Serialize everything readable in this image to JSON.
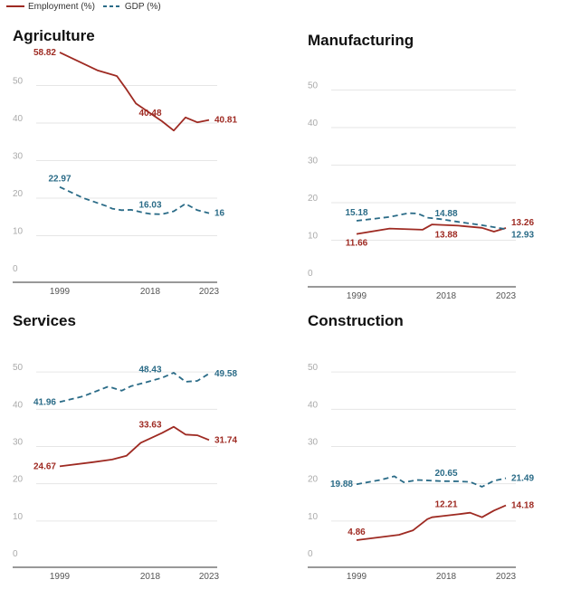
{
  "legend": {
    "employment": "Employment (%)",
    "gdp": "GDP (%)"
  },
  "colors": {
    "employment": "#9e2a22",
    "gdp": "#2a6b87"
  },
  "chart_data": [
    {
      "type": "line",
      "title": "Agriculture",
      "ylim": [
        0,
        60
      ],
      "yticks": [
        0,
        10,
        20,
        30,
        40,
        50
      ],
      "x_ticks": [
        "1999",
        "2018",
        "2023"
      ],
      "grid": true,
      "series": [
        {
          "name": "Employment (%)",
          "style": "solid",
          "x": [
            1999,
            2007,
            2011,
            2013,
            2015,
            2019,
            2020,
            2021,
            2022,
            2023
          ],
          "values": [
            58.82,
            54,
            52.5,
            49,
            45.2,
            40.48,
            38,
            41.5,
            40.2,
            40.81
          ],
          "labels": [
            {
              "x": 1999,
              "y": 58.82,
              "text": "58.82",
              "pos": "left"
            },
            {
              "x": 2018,
              "y": 40.48,
              "text": "40.48",
              "pos": "above"
            },
            {
              "x": 2023,
              "y": 40.81,
              "text": "40.81",
              "pos": "right"
            }
          ]
        },
        {
          "name": "GDP (%)",
          "style": "dashed",
          "x": [
            1999,
            2004,
            2009,
            2010,
            2012,
            2014,
            2017,
            2018,
            2019,
            2020,
            2021,
            2022,
            2023
          ],
          "values": [
            22.97,
            20,
            17.8,
            17.2,
            16.8,
            16.9,
            16.03,
            15.8,
            15.7,
            16.5,
            18.5,
            16.8,
            16
          ],
          "labels": [
            {
              "x": 1999,
              "y": 22.97,
              "text": "22.97",
              "pos": "above"
            },
            {
              "x": 2018,
              "y": 16.03,
              "text": "16.03",
              "pos": "above"
            },
            {
              "x": 2023,
              "y": 16,
              "text": "16",
              "pos": "right"
            }
          ]
        }
      ]
    },
    {
      "type": "line",
      "title": "Manufacturing",
      "ylim": [
        0,
        60
      ],
      "yticks": [
        0,
        10,
        20,
        30,
        40,
        50
      ],
      "x_ticks": [
        "1999",
        "2018",
        "2023"
      ],
      "grid": true,
      "series": [
        {
          "name": "Employment (%)",
          "style": "solid",
          "x": [
            1999,
            2006,
            2013,
            2015,
            2019,
            2021,
            2022,
            2023
          ],
          "values": [
            11.66,
            13.1,
            12.8,
            14.2,
            13.88,
            13.3,
            12.3,
            13.26
          ],
          "labels": [
            {
              "x": 1999,
              "y": 11.66,
              "text": "11.66",
              "pos": "below"
            },
            {
              "x": 2018,
              "y": 13.88,
              "text": "13.88",
              "pos": "below"
            },
            {
              "x": 2023,
              "y": 13.26,
              "text": "13.26",
              "pos": "rightup"
            }
          ]
        },
        {
          "name": "GDP (%)",
          "style": "dashed",
          "x": [
            1999,
            2006,
            2010,
            2012,
            2014,
            2017,
            2019,
            2021,
            2023
          ],
          "values": [
            15.18,
            16.2,
            17.2,
            17.1,
            16,
            15.6,
            14.88,
            14,
            12.93
          ],
          "labels": [
            {
              "x": 1999,
              "y": 15.18,
              "text": "15.18",
              "pos": "above"
            },
            {
              "x": 2018,
              "y": 14.88,
              "text": "14.88",
              "pos": "above"
            },
            {
              "x": 2023,
              "y": 12.93,
              "text": "12.93",
              "pos": "rightdown"
            }
          ]
        }
      ]
    },
    {
      "type": "line",
      "title": "Services",
      "ylim": [
        0,
        60
      ],
      "yticks": [
        0,
        10,
        20,
        30,
        40,
        50
      ],
      "x_ticks": [
        "1999",
        "2018",
        "2023"
      ],
      "grid": true,
      "series": [
        {
          "name": "Employment (%)",
          "style": "solid",
          "x": [
            1999,
            2006,
            2010,
            2013,
            2016,
            2019,
            2020,
            2021,
            2022,
            2023
          ],
          "values": [
            24.67,
            25.8,
            26.5,
            27.5,
            31,
            33.63,
            35.3,
            33.2,
            33,
            31.74
          ],
          "labels": [
            {
              "x": 1999,
              "y": 24.67,
              "text": "24.67",
              "pos": "left"
            },
            {
              "x": 2018,
              "y": 33.63,
              "text": "33.63",
              "pos": "above"
            },
            {
              "x": 2023,
              "y": 31.74,
              "text": "31.74",
              "pos": "right"
            }
          ]
        },
        {
          "name": "GDP (%)",
          "style": "dashed",
          "x": [
            1999,
            2004,
            2009,
            2010,
            2012,
            2014,
            2017,
            2019,
            2020,
            2021,
            2022,
            2023
          ],
          "values": [
            41.96,
            43.5,
            46,
            45.8,
            45,
            46.2,
            47.2,
            48.43,
            49.8,
            47.4,
            47.6,
            49.58
          ],
          "labels": [
            {
              "x": 1999,
              "y": 41.96,
              "text": "41.96",
              "pos": "left"
            },
            {
              "x": 2018,
              "y": 48.43,
              "text": "48.43",
              "pos": "above"
            },
            {
              "x": 2023,
              "y": 49.58,
              "text": "49.58",
              "pos": "right"
            }
          ]
        }
      ]
    },
    {
      "type": "line",
      "title": "Construction",
      "ylim": [
        0,
        60
      ],
      "yticks": [
        0,
        10,
        20,
        30,
        40,
        50
      ],
      "x_ticks": [
        "1999",
        "2018",
        "2023"
      ],
      "grid": true,
      "series": [
        {
          "name": "Employment (%)",
          "style": "solid",
          "x": [
            1999,
            2008,
            2011,
            2014,
            2015,
            2017,
            2019,
            2020,
            2021,
            2022,
            2023
          ],
          "values": [
            4.86,
            6.3,
            7.5,
            10.5,
            11,
            11.3,
            11.8,
            12.21,
            11,
            12.8,
            14.18
          ],
          "labels": [
            {
              "x": 1999,
              "y": 4.86,
              "text": "4.86",
              "pos": "above"
            },
            {
              "x": 2018,
              "y": 12.21,
              "text": "12.21",
              "pos": "above"
            },
            {
              "x": 2023,
              "y": 14.18,
              "text": "14.18",
              "pos": "right"
            }
          ]
        },
        {
          "name": "GDP (%)",
          "style": "dashed",
          "x": [
            1999,
            2004,
            2007,
            2009,
            2012,
            2017,
            2019,
            2020,
            2021,
            2022,
            2023
          ],
          "values": [
            19.88,
            21,
            22,
            20.4,
            21,
            20.7,
            20.65,
            20.5,
            19.2,
            20.8,
            21.49
          ],
          "labels": [
            {
              "x": 1999,
              "y": 19.88,
              "text": "19.88",
              "pos": "left"
            },
            {
              "x": 2018,
              "y": 20.65,
              "text": "20.65",
              "pos": "above"
            },
            {
              "x": 2023,
              "y": 21.49,
              "text": "21.49",
              "pos": "right"
            }
          ]
        }
      ]
    }
  ]
}
